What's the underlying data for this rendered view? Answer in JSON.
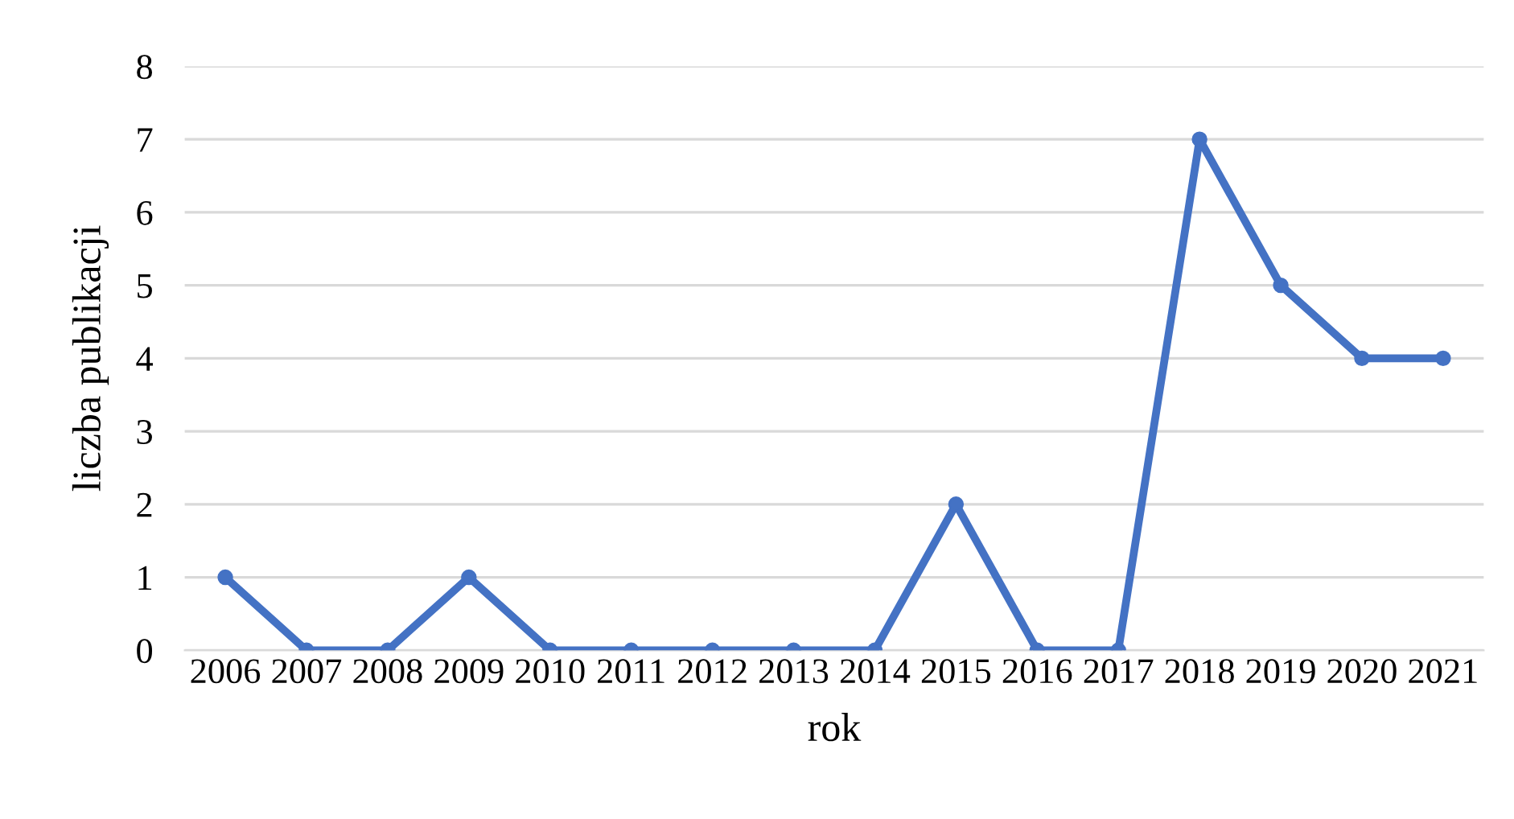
{
  "chart_data": {
    "type": "line",
    "xlabel": "rok",
    "ylabel": "liczba publikacji",
    "categories": [
      "2006",
      "2007",
      "2008",
      "2009",
      "2010",
      "2011",
      "2012",
      "2013",
      "2014",
      "2015",
      "2016",
      "2017",
      "2018",
      "2019",
      "2020",
      "2021"
    ],
    "series": [
      {
        "color": "#4472c4",
        "values": [
          1,
          0,
          0,
          1,
          0,
          0,
          0,
          0,
          0,
          2,
          0,
          0,
          7,
          5,
          4,
          4
        ]
      }
    ],
    "ylim": [
      0,
      8
    ],
    "yticks": [
      0,
      1,
      2,
      3,
      4,
      5,
      6,
      7,
      8
    ],
    "grid": "y",
    "marker": "circle",
    "line_style": "solid"
  }
}
